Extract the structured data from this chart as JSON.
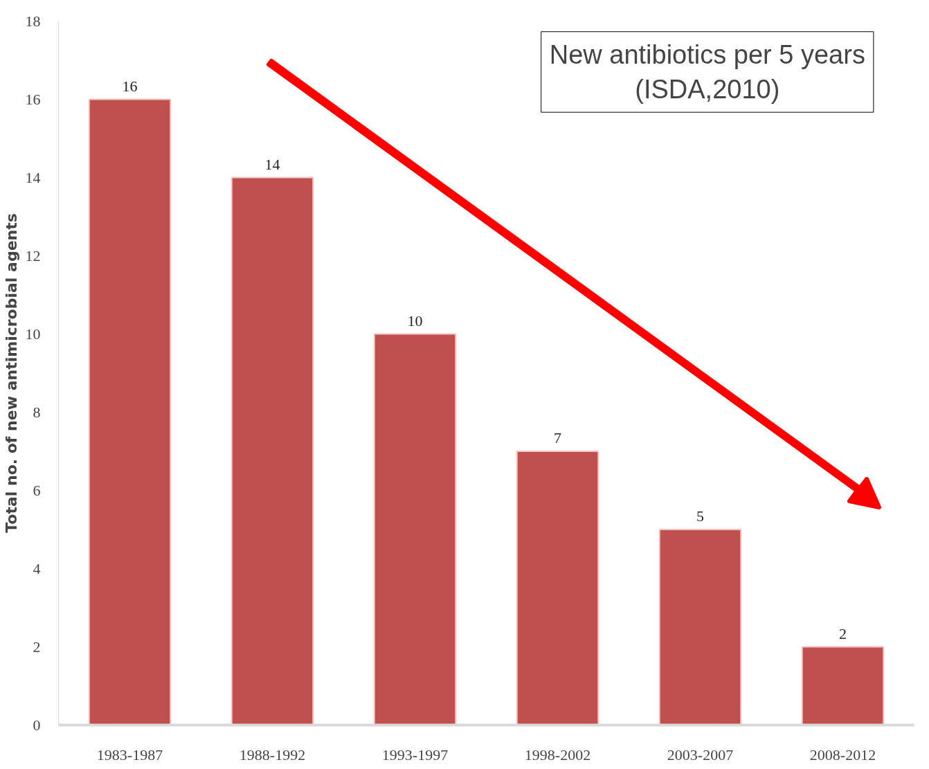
{
  "chart_data": {
    "type": "bar",
    "title": "New antibiotics per 5 years\n(ISDA,2010)",
    "ylabel": "Total no. of new antimicrobial agents",
    "categories": [
      "1983-1987",
      "1988-1992",
      "1993-1997",
      "1998-2002",
      "2003-2007",
      "2008-2012"
    ],
    "values": [
      16,
      14,
      10,
      7,
      5,
      2
    ],
    "color": "#c0504d",
    "ylim": [
      0,
      18
    ],
    "yticks": [
      0,
      2,
      4,
      6,
      8,
      10,
      12,
      14,
      16,
      18
    ],
    "grid": false,
    "data_labels": true
  }
}
